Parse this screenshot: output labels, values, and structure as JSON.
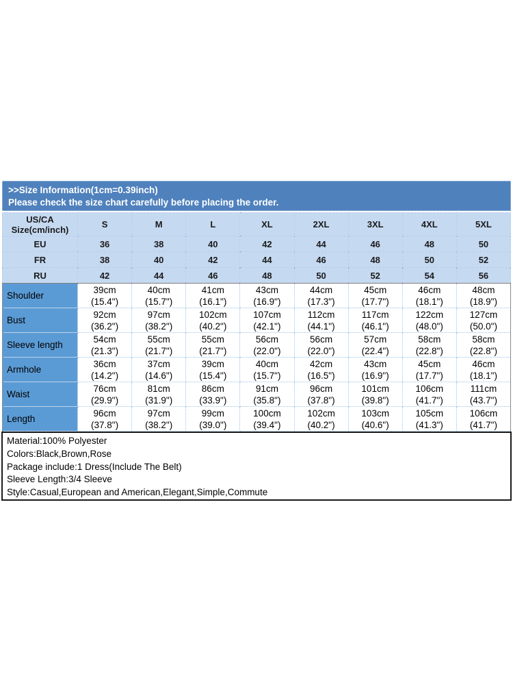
{
  "banner": {
    "line1": ">>Size Information(1cm=0.39inch)",
    "line2": "Please check the size chart carefully before placing the order.",
    "bg_color": "#4f81bd",
    "text_color": "#ffffff"
  },
  "size_table": {
    "corner_line1": "US/CA",
    "corner_line2": "Size(cm/inch)",
    "size_headers": [
      "S",
      "M",
      "L",
      "XL",
      "2XL",
      "3XL",
      "4XL",
      "5XL"
    ],
    "conversion_rows": [
      {
        "label": "EU",
        "values": [
          "36",
          "38",
          "40",
          "42",
          "44",
          "46",
          "48",
          "50"
        ]
      },
      {
        "label": "FR",
        "values": [
          "38",
          "40",
          "42",
          "44",
          "46",
          "48",
          "50",
          "52"
        ]
      },
      {
        "label": "RU",
        "values": [
          "42",
          "44",
          "46",
          "48",
          "50",
          "52",
          "54",
          "56"
        ]
      }
    ],
    "measurement_rows": [
      {
        "label": "Shoulder",
        "cells": [
          "39cm\n(15.4\")",
          "40cm\n(15.7\")",
          "41cm\n(16.1\")",
          "43cm\n(16.9\")",
          "44cm\n(17.3\")",
          "45cm\n(17.7\")",
          "46cm\n(18.1\")",
          "48cm\n(18.9\")"
        ]
      },
      {
        "label": "Bust",
        "cells": [
          "92cm\n(36.2\")",
          "97cm\n(38.2\")",
          "102cm\n(40.2\")",
          "107cm\n(42.1\")",
          "112cm\n(44.1\")",
          "117cm\n(46.1\")",
          "122cm\n(48.0\")",
          "127cm\n(50.0\")"
        ]
      },
      {
        "label": "Sleeve length",
        "cells": [
          "54cm\n(21.3\")",
          "55cm\n(21.7\")",
          "55cm\n(21.7\")",
          "56cm\n(22.0\")",
          "56cm\n(22.0\")",
          "57cm\n(22.4\")",
          "58cm\n(22.8\")",
          "58cm\n(22.8\")"
        ]
      },
      {
        "label": "Armhole",
        "cells": [
          "36cm\n(14.2\")",
          "37cm\n(14.6\")",
          "39cm\n(15.4\")",
          "40cm\n(15.7\")",
          "42cm\n(16.5\")",
          "43cm\n(16.9\")",
          "45cm\n(17.7\")",
          "46cm\n(18.1\")"
        ]
      },
      {
        "label": "Waist",
        "cells": [
          "76cm\n(29.9\")",
          "81cm\n(31.9\")",
          "86cm\n(33.9\")",
          "91cm\n(35.8\")",
          "96cm\n(37.8\")",
          "101cm\n(39.8\")",
          "106cm\n(41.7\")",
          "111cm\n(43.7\")"
        ]
      },
      {
        "label": "Length",
        "cells": [
          "96cm\n(37.8\")",
          "97cm\n(38.2\")",
          "99cm\n(39.0\")",
          "100cm\n(39.4\")",
          "102cm\n(40.2\")",
          "103cm\n(40.6\")",
          "105cm\n(41.3\")",
          "106cm\n(41.7\")"
        ]
      }
    ]
  },
  "details": {
    "lines": [
      "Material:100% Polyester",
      "Colors:Black,Brown,Rose",
      "Package include:1 Dress(Include The Belt)",
      "Sleeve Length:3/4 Sleeve",
      "Style:Casual,European and American,Elegant,Simple,Commute"
    ]
  },
  "colors": {
    "banner_bg": "#4f81bd",
    "conversion_row_bg": "#c5d9f1",
    "measurement_label_bg": "#5b9bd5",
    "grid_line": "#7da7d8",
    "details_border": "#1a1a1a"
  }
}
